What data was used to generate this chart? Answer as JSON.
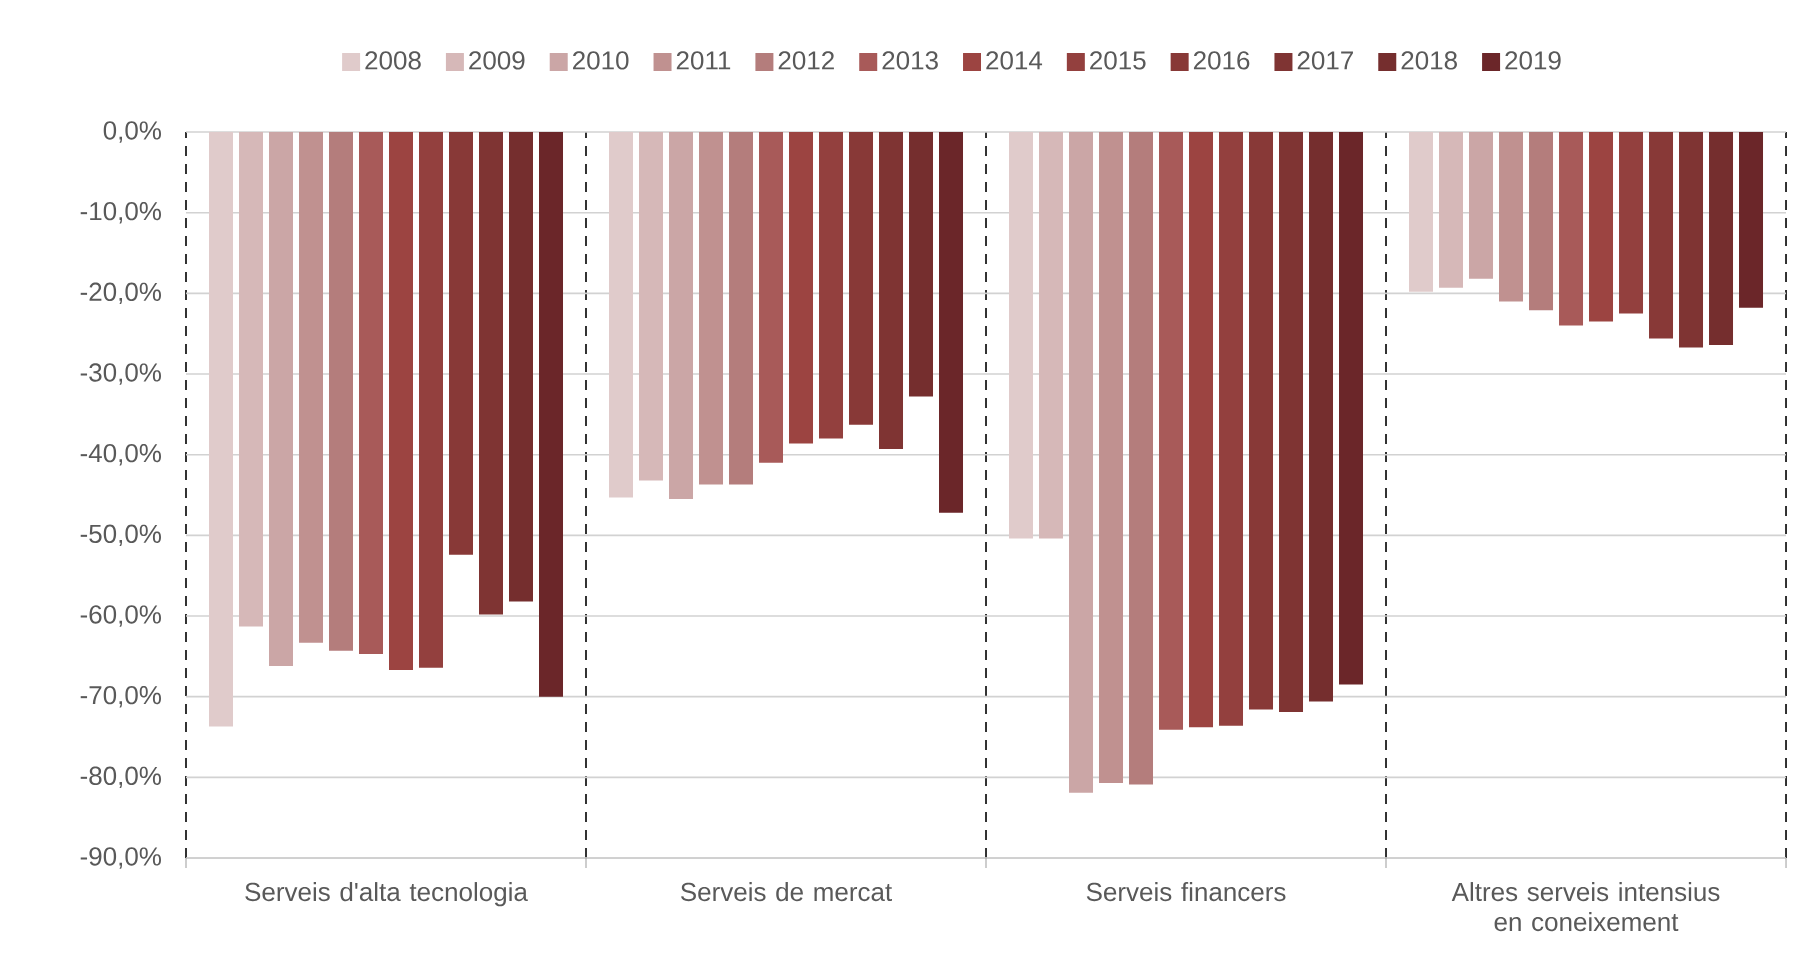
{
  "chart_data": {
    "type": "bar",
    "categories": [
      "Serveis d'alta tecnologia",
      "Serveis de mercat",
      "Serveis financers",
      "Altres serveis intensius en coneixement"
    ],
    "series": [
      {
        "name": "2008",
        "color": "#e0cbcb",
        "values": [
          -73.7,
          -45.3,
          -50.4,
          -19.8
        ]
      },
      {
        "name": "2009",
        "color": "#d6b8b8",
        "values": [
          -61.3,
          -43.2,
          -50.4,
          -19.3
        ]
      },
      {
        "name": "2010",
        "color": "#cba6a6",
        "values": [
          -66.2,
          -45.5,
          -81.9,
          -18.2
        ]
      },
      {
        "name": "2011",
        "color": "#c09190",
        "values": [
          -63.3,
          -43.7,
          -80.7,
          -21.0
        ]
      },
      {
        "name": "2012",
        "color": "#b47d7c",
        "values": [
          -64.3,
          -43.7,
          -80.9,
          -22.1
        ]
      },
      {
        "name": "2013",
        "color": "#a85a59",
        "values": [
          -64.7,
          -41.0,
          -74.1,
          -24.0
        ]
      },
      {
        "name": "2014",
        "color": "#9c4441",
        "values": [
          -66.7,
          -38.6,
          -73.8,
          -23.5
        ]
      },
      {
        "name": "2015",
        "color": "#93403e",
        "values": [
          -66.4,
          -38.0,
          -73.6,
          -22.5
        ]
      },
      {
        "name": "2016",
        "color": "#883937",
        "values": [
          -52.4,
          -36.3,
          -71.6,
          -25.6
        ]
      },
      {
        "name": "2017",
        "color": "#7f3433",
        "values": [
          -59.8,
          -39.3,
          -71.9,
          -26.7
        ]
      },
      {
        "name": "2018",
        "color": "#752e2e",
        "values": [
          -58.2,
          -32.8,
          -70.6,
          -26.4
        ]
      },
      {
        "name": "2019",
        "color": "#6b2629",
        "values": [
          -70.0,
          -47.2,
          -68.5,
          -21.8
        ]
      }
    ],
    "ylim": [
      -90,
      0
    ],
    "yticks": [
      {
        "value": -90,
        "label": "-90,0%"
      },
      {
        "value": -80,
        "label": "-80,0%"
      },
      {
        "value": -70,
        "label": "-70,0%"
      },
      {
        "value": -60,
        "label": "-60,0%"
      },
      {
        "value": -50,
        "label": "-50,0%"
      },
      {
        "value": -40,
        "label": "-40,0%"
      },
      {
        "value": -30,
        "label": "-30,0%"
      },
      {
        "value": -20,
        "label": "-20,0%"
      },
      {
        "value": -10,
        "label": "-10,0%"
      },
      {
        "value": 0,
        "label": "0,0%"
      }
    ],
    "grid": "y",
    "legend": "top"
  }
}
